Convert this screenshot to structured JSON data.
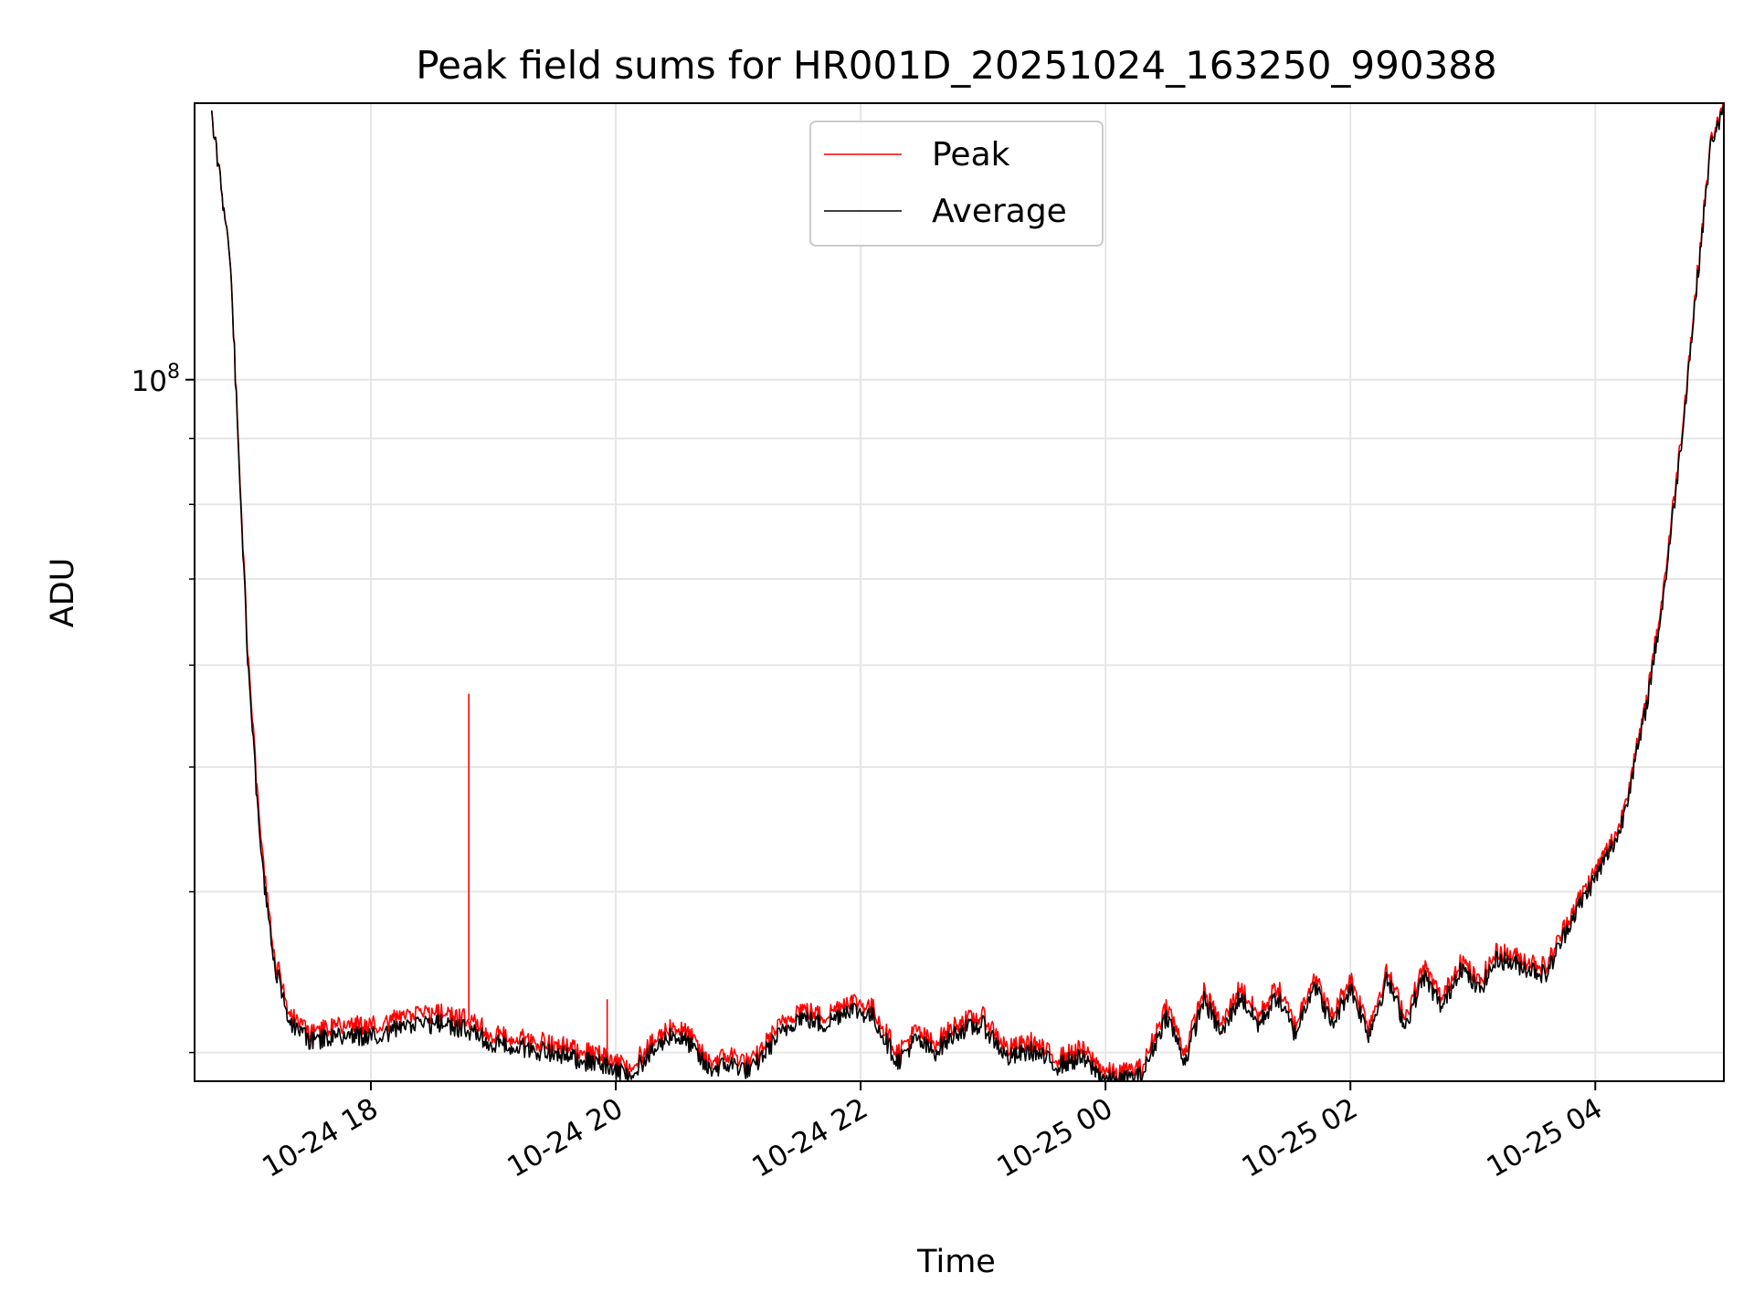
{
  "chart_data": {
    "type": "line",
    "title": "Peak field sums for HR001D_20251024_163250_990388",
    "xlabel": "Time",
    "ylabel": "ADU",
    "yscale": "log",
    "grid": true,
    "legend_position": "upper-center",
    "x_unit": "hours since 10-24 00:00",
    "xlim": [
      16.56,
      29.05
    ],
    "ylim": [
      28500000,
      164000000
    ],
    "x_tick_hours": [
      18,
      20,
      22,
      24,
      26,
      28
    ],
    "x_tick_labels": [
      "10-24 18",
      "10-24 20",
      "10-24 22",
      "10-25 00",
      "10-25 02",
      "10-25 04"
    ],
    "y_major_tick": {
      "value": 100000000,
      "label_base": "10",
      "label_exp": "8"
    },
    "y_minor_ticks": [
      30000000,
      40000000,
      50000000,
      60000000,
      70000000,
      80000000,
      90000000,
      200000000
    ],
    "series": [
      {
        "name": "Peak",
        "color": "#ff0000",
        "x": [
          16.7,
          16.85,
          17.0,
          17.1,
          17.2,
          17.35,
          17.5,
          17.7,
          18.0,
          18.3,
          18.6,
          18.8,
          19.0,
          19.3,
          19.6,
          19.9,
          20.1,
          20.3,
          20.45,
          20.6,
          20.75,
          20.95,
          21.1,
          21.3,
          21.5,
          21.7,
          21.9,
          22.1,
          22.3,
          22.45,
          22.6,
          22.8,
          23.0,
          23.2,
          23.4,
          23.6,
          23.8,
          24.0,
          24.1,
          24.3,
          24.5,
          24.65,
          24.8,
          24.95,
          25.1,
          25.25,
          25.4,
          25.55,
          25.7,
          25.85,
          26.0,
          26.15,
          26.3,
          26.45,
          26.6,
          26.75,
          26.9,
          27.05,
          27.2,
          27.4,
          27.6,
          27.8,
          28.0,
          28.2,
          28.4,
          28.55,
          28.7,
          28.85,
          28.95,
          29.05
        ],
        "values": [
          160000000,
          125000000,
          60000000,
          44000000,
          36000000,
          32000000,
          31000000,
          31500000,
          31500000,
          32000000,
          32200000,
          31800000,
          31000000,
          30700000,
          30300000,
          29800000,
          29200000,
          30500000,
          31500000,
          31000000,
          29500000,
          29900000,
          29400000,
          31200000,
          32500000,
          32000000,
          33000000,
          32500000,
          30000000,
          31200000,
          30500000,
          31700000,
          32000000,
          30200000,
          30600000,
          29700000,
          30200000,
          29000000,
          28900000,
          29200000,
          32700000,
          30000000,
          33500000,
          31500000,
          33800000,
          32000000,
          33800000,
          31500000,
          34500000,
          32000000,
          34300000,
          31500000,
          34700000,
          32000000,
          35000000,
          33000000,
          35500000,
          34000000,
          36000000,
          35500000,
          35000000,
          38500000,
          41500000,
          45000000,
          55000000,
          68000000,
          90000000,
          125000000,
          155000000,
          162000000
        ],
        "spikes": [
          [
            18.8,
            57000000
          ],
          [
            19.93,
            33000000
          ],
          [
            18.2,
            32200000
          ],
          [
            18.42,
            32200000
          ]
        ]
      },
      {
        "name": "Average",
        "color": "#000000",
        "x": [
          16.7,
          16.85,
          17.0,
          17.1,
          17.2,
          17.35,
          17.5,
          17.7,
          18.0,
          18.3,
          18.6,
          18.8,
          19.0,
          19.3,
          19.6,
          19.9,
          20.1,
          20.3,
          20.45,
          20.6,
          20.75,
          20.95,
          21.1,
          21.3,
          21.5,
          21.7,
          21.9,
          22.1,
          22.3,
          22.45,
          22.6,
          22.8,
          23.0,
          23.2,
          23.4,
          23.6,
          23.8,
          24.0,
          24.1,
          24.3,
          24.5,
          24.65,
          24.8,
          24.95,
          25.1,
          25.25,
          25.4,
          25.55,
          25.7,
          25.85,
          26.0,
          26.15,
          26.3,
          26.45,
          26.6,
          26.75,
          26.9,
          27.05,
          27.2,
          27.4,
          27.6,
          27.8,
          28.0,
          28.2,
          28.4,
          28.55,
          28.7,
          28.85,
          28.95,
          29.05
        ],
        "values": [
          160000000,
          125000000,
          59000000,
          43000000,
          35500000,
          31500000,
          30600000,
          30900000,
          30900000,
          31400000,
          31600000,
          31200000,
          30500000,
          30200000,
          29800000,
          29300000,
          28800000,
          30000000,
          31000000,
          30500000,
          29100000,
          29400000,
          29000000,
          30700000,
          32000000,
          31500000,
          32500000,
          32000000,
          29500000,
          30700000,
          30000000,
          31200000,
          31500000,
          29700000,
          30100000,
          29300000,
          29700000,
          28600000,
          28500000,
          28800000,
          32100000,
          29500000,
          33000000,
          31000000,
          33200000,
          31500000,
          33200000,
          31000000,
          34000000,
          31500000,
          33700000,
          31000000,
          34200000,
          31500000,
          34400000,
          32500000,
          35000000,
          33500000,
          35500000,
          35000000,
          34500000,
          38000000,
          41000000,
          44500000,
          54500000,
          67000000,
          89000000,
          124000000,
          154000000,
          161000000
        ]
      }
    ]
  },
  "legend": {
    "peak_label": "Peak",
    "average_label": "Average"
  }
}
